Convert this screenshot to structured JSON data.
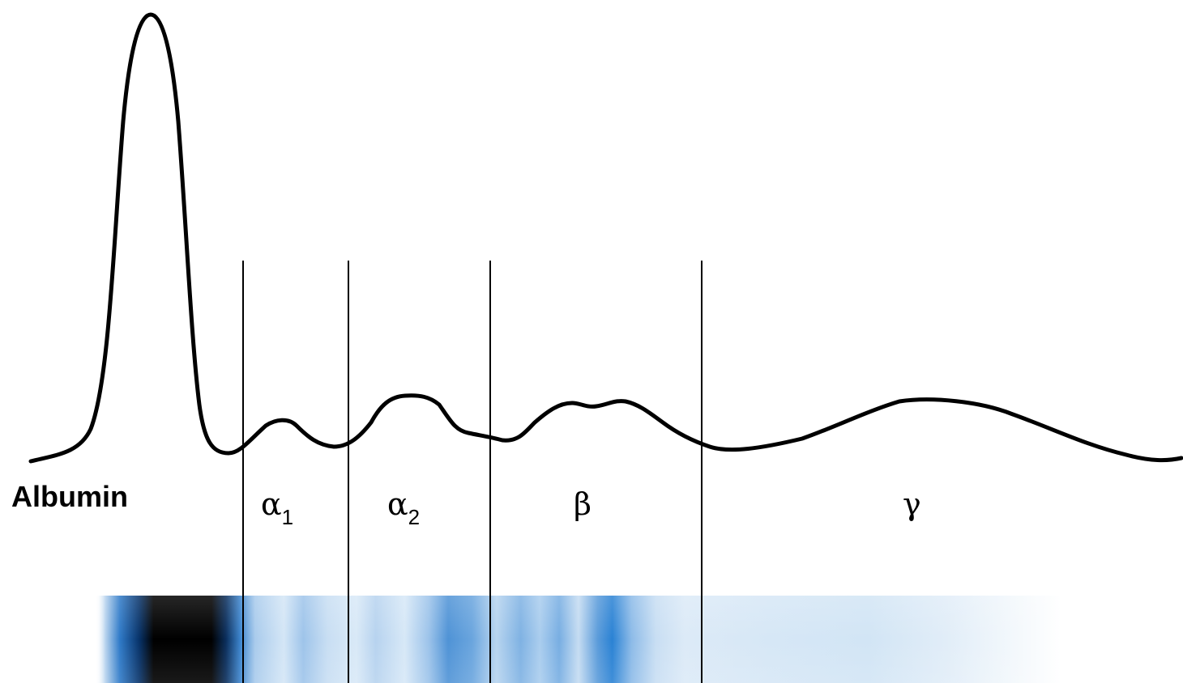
{
  "fractions": [
    {
      "key": "albumin",
      "symbol": "Albumin",
      "subscript": ""
    },
    {
      "key": "alpha1",
      "symbol": "α",
      "subscript": "1"
    },
    {
      "key": "alpha2",
      "symbol": "α",
      "subscript": "2"
    },
    {
      "key": "beta",
      "symbol": "β",
      "subscript": ""
    },
    {
      "key": "gamma",
      "symbol": "γ",
      "subscript": ""
    }
  ],
  "colors": {
    "curve": "#000000",
    "divider": "#000000",
    "gel_dark": "#000814",
    "gel_band": "#1f7fd6",
    "gel_light": "#cfe3f5",
    "background": "#ffffff"
  }
}
